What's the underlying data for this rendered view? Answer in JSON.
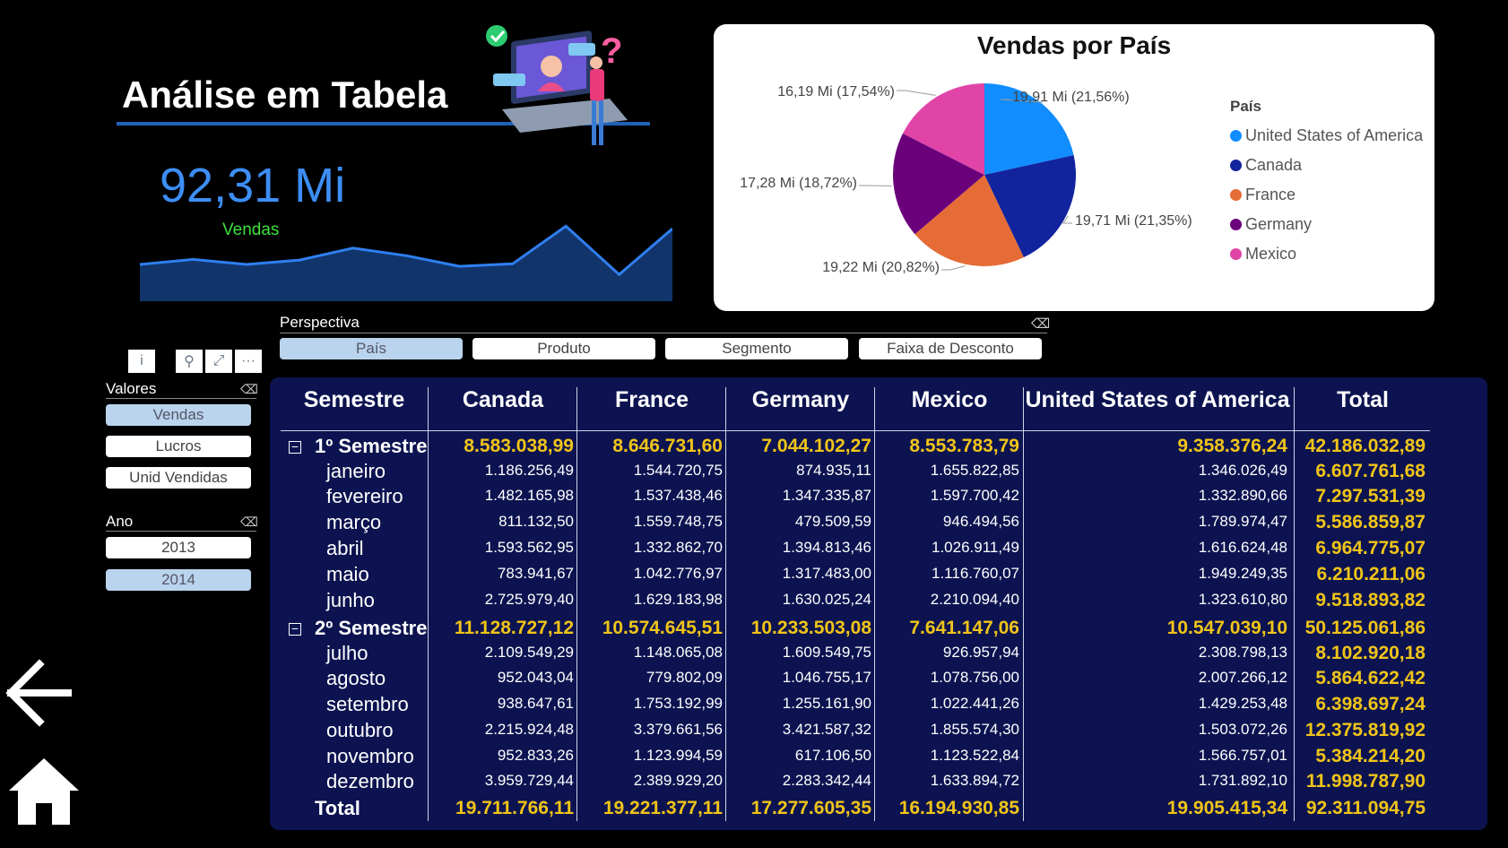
{
  "header": {
    "title": "Análise em Tabela"
  },
  "kpi": {
    "value": "92,31 Mi",
    "label": "Vendas",
    "sparkline": [
      0.3,
      0.38,
      0.3,
      0.37,
      0.56,
      0.44,
      0.27,
      0.31,
      0.91,
      0.14,
      0.87
    ]
  },
  "pie": {
    "title": "Vendas por País",
    "legend_title": "País",
    "slices": [
      {
        "name": "United States of America",
        "label": "19,91 Mi (21,56%)",
        "value": 19.91,
        "color": "#118dff"
      },
      {
        "name": "Canada",
        "label": "19,71 Mi (21,35%)",
        "value": 19.71,
        "color": "#12239e"
      },
      {
        "name": "France",
        "label": "19,22 Mi (20,82%)",
        "value": 19.22,
        "color": "#e66c37"
      },
      {
        "name": "Germany",
        "label": "17,28 Mi (18,72%)",
        "value": 17.28,
        "color": "#6b007b"
      },
      {
        "name": "Mexico",
        "label": "16,19 Mi (17,54%)",
        "value": 16.19,
        "color": "#e044a7"
      }
    ]
  },
  "perspectiva": {
    "label": "Perspectiva",
    "options": [
      "País",
      "Produto",
      "Segmento",
      "Faixa de Desconto"
    ],
    "selected": "País"
  },
  "toolbar": {
    "info": "i",
    "filter": "⚲",
    "focus": "⤢",
    "more": "···"
  },
  "valores": {
    "label": "Valores",
    "options": [
      "Vendas",
      "Lucros",
      "Unid Vendidas"
    ],
    "selected": "Vendas"
  },
  "ano": {
    "label": "Ano",
    "options": [
      "2013",
      "2014"
    ],
    "selected": "2014"
  },
  "table": {
    "headers": [
      "Semestre",
      "Canada",
      "France",
      "Germany",
      "Mexico",
      "United States of America",
      "Total"
    ],
    "rows": [
      {
        "label": "1º Semestre",
        "type": "group",
        "values": [
          "8.583.038,99",
          "8.646.731,60",
          "7.044.102,27",
          "8.553.783,79",
          "9.358.376,24",
          "42.186.032,89"
        ]
      },
      {
        "label": "janeiro",
        "type": "month",
        "values": [
          "1.186.256,49",
          "1.544.720,75",
          "874.935,11",
          "1.655.822,85",
          "1.346.026,49",
          "6.607.761,68"
        ]
      },
      {
        "label": "fevereiro",
        "type": "month",
        "values": [
          "1.482.165,98",
          "1.537.438,46",
          "1.347.335,87",
          "1.597.700,42",
          "1.332.890,66",
          "7.297.531,39"
        ]
      },
      {
        "label": "março",
        "type": "month",
        "values": [
          "811.132,50",
          "1.559.748,75",
          "479.509,59",
          "946.494,56",
          "1.789.974,47",
          "5.586.859,87"
        ]
      },
      {
        "label": "abril",
        "type": "month",
        "values": [
          "1.593.562,95",
          "1.332.862,70",
          "1.394.813,46",
          "1.026.911,49",
          "1.616.624,48",
          "6.964.775,07"
        ]
      },
      {
        "label": "maio",
        "type": "month",
        "values": [
          "783.941,67",
          "1.042.776,97",
          "1.317.483,00",
          "1.116.760,07",
          "1.949.249,35",
          "6.210.211,06"
        ]
      },
      {
        "label": "junho",
        "type": "month",
        "values": [
          "2.725.979,40",
          "1.629.183,98",
          "1.630.025,24",
          "2.210.094,40",
          "1.323.610,80",
          "9.518.893,82"
        ]
      },
      {
        "label": "2º Semestre",
        "type": "group",
        "values": [
          "11.128.727,12",
          "10.574.645,51",
          "10.233.503,08",
          "7.641.147,06",
          "10.547.039,10",
          "50.125.061,86"
        ]
      },
      {
        "label": "julho",
        "type": "month",
        "values": [
          "2.109.549,29",
          "1.148.065,08",
          "1.609.549,75",
          "926.957,94",
          "2.308.798,13",
          "8.102.920,18"
        ]
      },
      {
        "label": "agosto",
        "type": "month",
        "values": [
          "952.043,04",
          "779.802,09",
          "1.046.755,17",
          "1.078.756,00",
          "2.007.266,12",
          "5.864.622,42"
        ]
      },
      {
        "label": "setembro",
        "type": "month",
        "values": [
          "938.647,61",
          "1.753.192,99",
          "1.255.161,90",
          "1.022.441,26",
          "1.429.253,48",
          "6.398.697,24"
        ]
      },
      {
        "label": "outubro",
        "type": "month",
        "values": [
          "2.215.924,48",
          "3.379.661,56",
          "3.421.587,32",
          "1.855.574,30",
          "1.503.072,26",
          "12.375.819,92"
        ]
      },
      {
        "label": "novembro",
        "type": "month",
        "values": [
          "952.833,26",
          "1.123.994,59",
          "617.106,50",
          "1.123.522,84",
          "1.566.757,01",
          "5.384.214,20"
        ]
      },
      {
        "label": "dezembro",
        "type": "month",
        "values": [
          "3.959.729,44",
          "2.389.929,20",
          "2.283.342,44",
          "1.633.894,72",
          "1.731.892,10",
          "11.998.787,90"
        ]
      },
      {
        "label": "Total",
        "type": "total",
        "values": [
          "19.711.766,11",
          "19.221.377,11",
          "17.277.605,35",
          "16.194.930,85",
          "19.905.415,34",
          "92.311.094,75"
        ]
      }
    ]
  },
  "nav": {
    "back": "back",
    "home": "home"
  }
}
